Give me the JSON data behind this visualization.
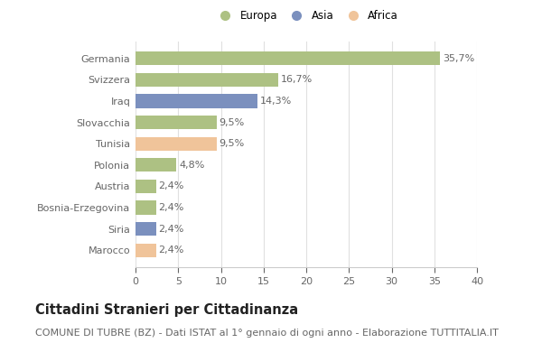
{
  "categories": [
    "Marocco",
    "Siria",
    "Bosnia-Erzegovina",
    "Austria",
    "Polonia",
    "Tunisia",
    "Slovacchia",
    "Iraq",
    "Svizzera",
    "Germania"
  ],
  "values": [
    2.4,
    2.4,
    2.4,
    2.4,
    4.8,
    9.5,
    9.5,
    14.3,
    16.7,
    35.7
  ],
  "labels": [
    "2,4%",
    "2,4%",
    "2,4%",
    "2,4%",
    "4,8%",
    "9,5%",
    "9,5%",
    "14,3%",
    "16,7%",
    "35,7%"
  ],
  "colors": [
    "#f0c49a",
    "#7b90be",
    "#adc183",
    "#adc183",
    "#adc183",
    "#f0c49a",
    "#adc183",
    "#7b90be",
    "#adc183",
    "#adc183"
  ],
  "legend_labels": [
    "Europa",
    "Asia",
    "Africa"
  ],
  "legend_colors": [
    "#adc183",
    "#7b90be",
    "#f0c49a"
  ],
  "title": "Cittadini Stranieri per Cittadinanza",
  "subtitle": "COMUNE DI TUBRE (BZ) - Dati ISTAT al 1° gennaio di ogni anno - Elaborazione TUTTITALIA.IT",
  "xlim": [
    0,
    40
  ],
  "xticks": [
    0,
    5,
    10,
    15,
    20,
    25,
    30,
    35,
    40
  ],
  "background_color": "#ffffff",
  "plot_bg_color": "#ffffff",
  "grid_color": "#e0e0e0",
  "bar_height": 0.65,
  "title_fontsize": 10.5,
  "subtitle_fontsize": 8,
  "label_fontsize": 8,
  "tick_fontsize": 8,
  "legend_fontsize": 8.5
}
